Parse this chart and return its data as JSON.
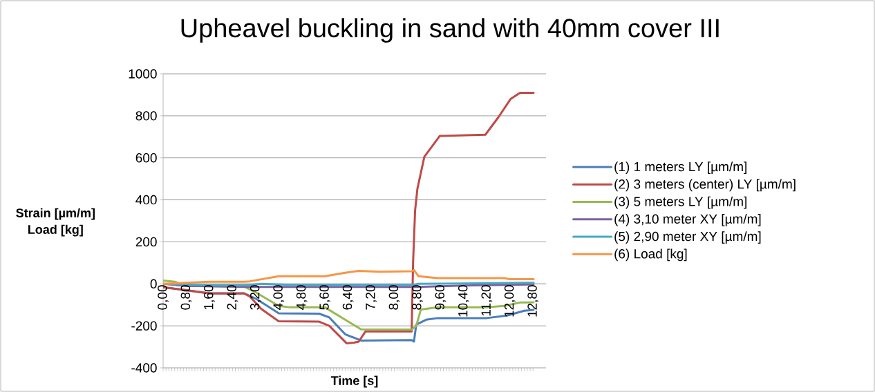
{
  "chart_data": {
    "type": "line",
    "title": "Upheavel buckling in sand with 40mm cover III",
    "xlabel": "Time [s]",
    "ylabel": "Strain [µm/m] Load [kg]",
    "xlim": [
      0,
      13.25
    ],
    "ylim": [
      -400,
      1000
    ],
    "xticks": [
      {
        "value": 0,
        "label": "0,00"
      },
      {
        "value": 0.8,
        "label": "0,80"
      },
      {
        "value": 1.6,
        "label": "1,60"
      },
      {
        "value": 2.4,
        "label": "2,40"
      },
      {
        "value": 3.2,
        "label": "3,20"
      },
      {
        "value": 4.0,
        "label": "4,00"
      },
      {
        "value": 4.8,
        "label": "4,80"
      },
      {
        "value": 5.6,
        "label": "5,60"
      },
      {
        "value": 6.4,
        "label": "6,40"
      },
      {
        "value": 7.2,
        "label": "7,20"
      },
      {
        "value": 8.0,
        "label": "8,00"
      },
      {
        "value": 8.8,
        "label": "8,80"
      },
      {
        "value": 9.6,
        "label": "9,60"
      },
      {
        "value": 10.4,
        "label": "10,40"
      },
      {
        "value": 11.2,
        "label": "11,20"
      },
      {
        "value": 12.0,
        "label": "12,00"
      },
      {
        "value": 12.8,
        "label": "12,80"
      }
    ],
    "yticks": [
      -400,
      -200,
      0,
      200,
      400,
      600,
      800,
      1000
    ],
    "grid": "y",
    "legend": "right",
    "series": [
      {
        "name": "(1) 1 meters LY [µm/m]",
        "color": "#4a7ebb",
        "x": [
          0,
          0.8,
          1.6,
          2.8,
          3.2,
          3.8,
          4.0,
          5.4,
          5.75,
          6.3,
          6.85,
          8.6,
          8.68,
          8.76,
          9.1,
          9.5,
          11.2,
          11.9,
          12.5,
          12.82
        ],
        "values": [
          -16,
          -30,
          -45,
          -45,
          -70,
          -122,
          -140,
          -142,
          -160,
          -240,
          -270,
          -268,
          -275,
          -194,
          -171,
          -163,
          -163,
          -151,
          -128,
          -124
        ]
      },
      {
        "name": "(2) 3 meters (center) LY [µm/m]",
        "color": "#be4b48",
        "x": [
          0,
          0.8,
          1.1,
          1.6,
          2.8,
          3.0,
          3.4,
          4.0,
          5.4,
          5.75,
          6.35,
          6.6,
          6.77,
          7.0,
          8.6,
          8.65,
          8.72,
          8.8,
          9.04,
          9.57,
          11.15,
          11.6,
          12.03,
          12.35,
          12.82
        ],
        "values": [
          -16,
          -30,
          -36,
          -46,
          -46,
          -60,
          -120,
          -178,
          -180,
          -200,
          -283,
          -280,
          -275,
          -227,
          -227,
          100,
          350,
          453,
          605,
          704,
          710,
          793,
          881,
          910,
          910
        ]
      },
      {
        "name": "(3) 5 meters LY [µm/m]",
        "color": "#98b954",
        "x": [
          0,
          0.4,
          0.8,
          2.8,
          3.2,
          4.0,
          4.4,
          5.6,
          6.3,
          6.85,
          8.6,
          8.76,
          8.92,
          9.5,
          11.2,
          11.8,
          12.35,
          12.82
        ],
        "values": [
          16,
          10,
          -10,
          -13,
          -40,
          -105,
          -112,
          -112,
          -171,
          -217,
          -218,
          -200,
          -122,
          -112,
          -112,
          -105,
          -89,
          -88
        ]
      },
      {
        "name": "(4) 3,10 meter XY [µm/m]",
        "color": "#7d60a0",
        "x": [
          0,
          0.8,
          3.0,
          8.8,
          10.4,
          12.82
        ],
        "values": [
          0,
          -10,
          -15,
          -15,
          -8,
          -3
        ]
      },
      {
        "name": "(5) 2,90 meter XY [µm/m]",
        "color": "#46aac5",
        "x": [
          0,
          1.6,
          2.8,
          3.4,
          4.4,
          8.7,
          8.8,
          10.4,
          12.82
        ],
        "values": [
          0,
          -7,
          -7,
          0,
          -5,
          -5,
          0,
          2,
          5
        ]
      },
      {
        "name": "(6) Load [kg]",
        "color": "#f79646",
        "x": [
          0,
          0.8,
          1.6,
          2.8,
          3.0,
          4.0,
          5.6,
          6.3,
          6.77,
          7.5,
          8.6,
          8.68,
          8.84,
          9.5,
          11.8,
          12.0,
          12.82
        ],
        "values": [
          0,
          5,
          10,
          10,
          12,
          36,
          36,
          53,
          62,
          58,
          60,
          66,
          36,
          27,
          27,
          22,
          22
        ]
      }
    ]
  }
}
